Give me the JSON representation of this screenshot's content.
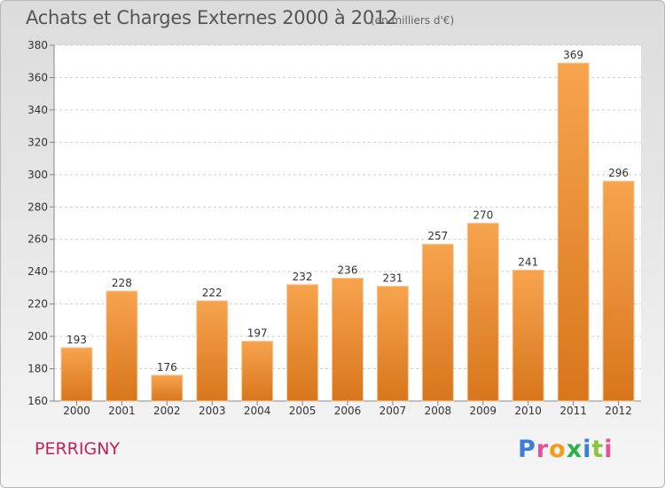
{
  "header": {
    "title": "Achats et Charges Externes 2000 à 2012",
    "subtitle": "(en milliers d'€)"
  },
  "footer": {
    "commune": "PERRIGNY",
    "logo": "Proxiti"
  },
  "colors": {
    "bar_top": "#f7a44e",
    "bar_bottom": "#d8761c",
    "commune_text": "#c0245c"
  },
  "chart_data": {
    "type": "bar",
    "title": "Achats et Charges Externes 2000 à 2012",
    "subtitle": "(en milliers d'€)",
    "xlabel": "",
    "ylabel": "",
    "categories": [
      "2000",
      "2001",
      "2002",
      "2003",
      "2004",
      "2005",
      "2006",
      "2007",
      "2008",
      "2009",
      "2010",
      "2011",
      "2012"
    ],
    "values": [
      193,
      228,
      176,
      222,
      197,
      232,
      236,
      231,
      257,
      270,
      241,
      369,
      296
    ],
    "ylim": [
      160,
      380
    ],
    "yticks": [
      160,
      180,
      200,
      220,
      240,
      260,
      280,
      300,
      320,
      340,
      360,
      380
    ],
    "grid": true,
    "data_labels": true
  }
}
